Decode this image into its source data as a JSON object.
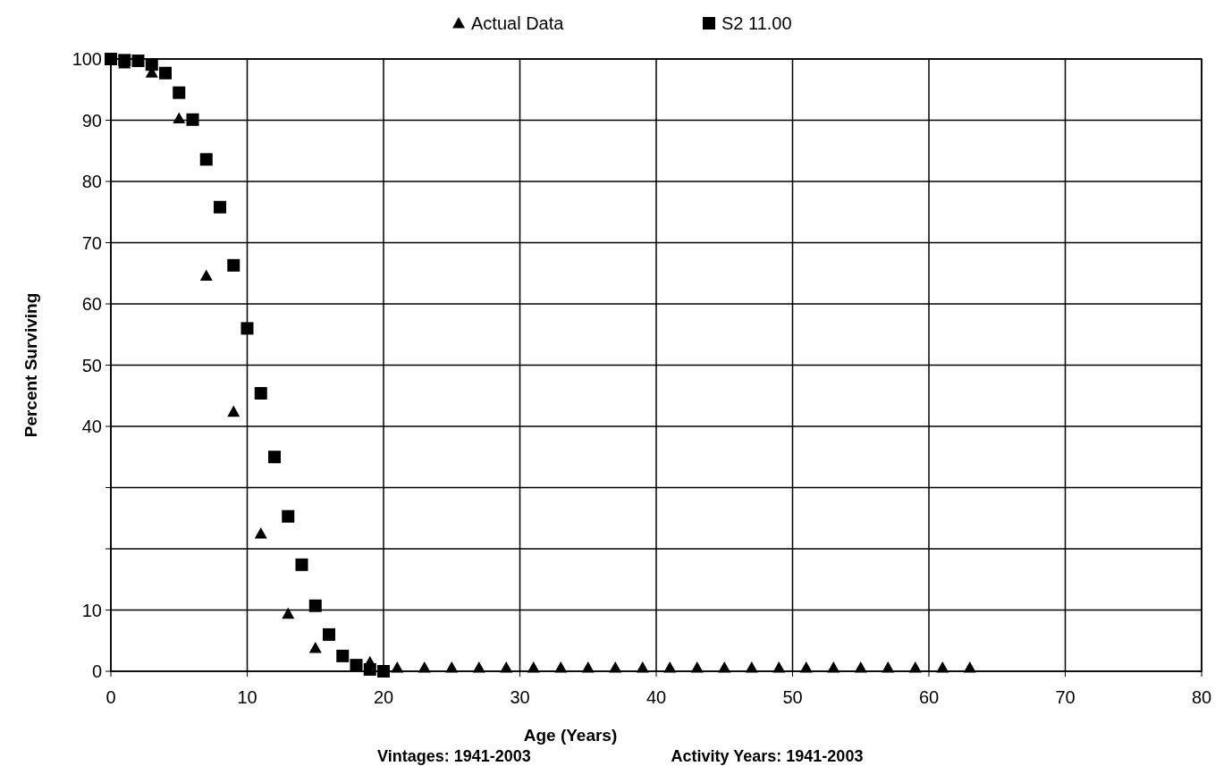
{
  "chart_data": {
    "type": "scatter",
    "xlabel": "Age (Years)",
    "ylabel": "Percent Surviving",
    "annotations": [
      "Vintages: 1941-2003",
      "Activity Years: 1941-2003"
    ],
    "xlim": [
      0,
      80
    ],
    "xticks": [
      0,
      10,
      20,
      30,
      40,
      50,
      60,
      70,
      80
    ],
    "ylim": [
      0,
      100
    ],
    "yticks": [
      0,
      10,
      {
        "value": 20,
        "label": null
      },
      {
        "value": 30,
        "label": null
      },
      40,
      50,
      60,
      70,
      80,
      90,
      100
    ],
    "grid": true,
    "legend": "top",
    "series": [
      {
        "name": "Actual Data",
        "color": "#000000",
        "marker": "triangle",
        "x": [
          1,
          3,
          5,
          7,
          9,
          11,
          13,
          15,
          19,
          21,
          23,
          25,
          27,
          29,
          31,
          33,
          35,
          37,
          39,
          41,
          43,
          45,
          47,
          49,
          51,
          53,
          55,
          57,
          59,
          61,
          63
        ],
        "values": [
          99.3,
          97.8,
          90.3,
          64.6,
          42.4,
          22.5,
          9.4,
          3.8,
          1.5,
          0.6,
          0.6,
          0.6,
          0.6,
          0.6,
          0.6,
          0.6,
          0.6,
          0.6,
          0.6,
          0.6,
          0.6,
          0.6,
          0.6,
          0.6,
          0.6,
          0.6,
          0.6,
          0.6,
          0.6,
          0.6,
          0.6
        ]
      },
      {
        "name": "S2 11.00",
        "color": "#000000",
        "marker": "square",
        "x": [
          0,
          1,
          2,
          3,
          4,
          5,
          6,
          7,
          8,
          9,
          10,
          11,
          12,
          13,
          14,
          15,
          16,
          17,
          18,
          19,
          20
        ],
        "values": [
          100,
          99.8,
          99.7,
          99.1,
          97.7,
          94.5,
          90.1,
          83.6,
          75.8,
          66.3,
          56,
          45.4,
          35,
          25.3,
          17.4,
          10.7,
          6,
          2.5,
          1,
          0.3,
          0
        ]
      }
    ]
  }
}
